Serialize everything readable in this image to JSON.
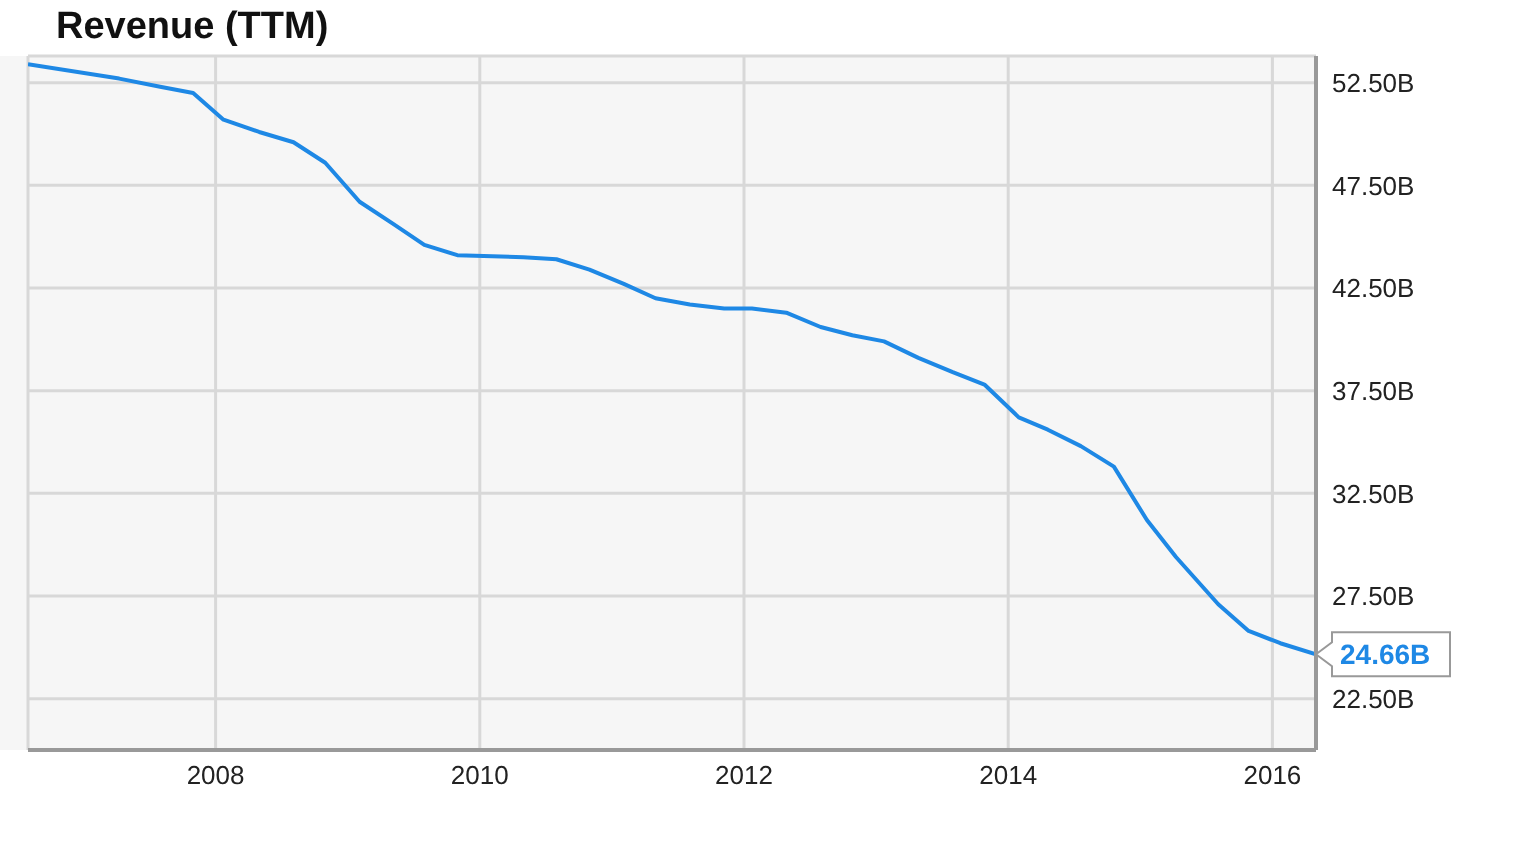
{
  "chart_data": {
    "type": "line",
    "title": "Revenue (TTM)",
    "x": [
      2006.58,
      2007.27,
      2007.58,
      2007.83,
      2008.06,
      2008.33,
      2008.59,
      2008.83,
      2009.09,
      2009.35,
      2009.58,
      2009.83,
      2010.33,
      2010.58,
      2010.83,
      2011.09,
      2011.33,
      2011.59,
      2011.85,
      2012.06,
      2012.32,
      2012.58,
      2012.82,
      2013.06,
      2013.32,
      2013.58,
      2013.82,
      2014.08,
      2014.3,
      2014.55,
      2014.8,
      2015.05,
      2015.27,
      2015.59,
      2015.82,
      2016.06,
      2016.33
    ],
    "series": [
      {
        "color": "#1e88e5",
        "values": [
          53.4,
          52.7,
          52.3,
          52.0,
          50.7,
          50.1,
          49.6,
          48.6,
          46.7,
          45.6,
          44.6,
          44.1,
          44.0,
          43.9,
          43.4,
          42.7,
          42.0,
          41.7,
          41.5,
          41.5,
          41.3,
          40.6,
          40.2,
          39.9,
          39.1,
          38.4,
          37.8,
          36.2,
          35.6,
          34.8,
          33.8,
          31.2,
          29.4,
          27.1,
          25.8,
          25.2,
          24.66
        ],
        "value_labels": [
          null,
          null,
          null,
          null,
          null,
          null,
          null,
          null,
          null,
          null,
          null,
          null,
          null,
          null,
          null,
          null,
          null,
          null,
          null,
          null,
          null,
          null,
          null,
          null,
          null,
          null,
          null,
          null,
          null,
          null,
          null,
          null,
          null,
          null,
          null,
          null,
          "24.66B"
        ]
      }
    ],
    "xlim": [
      2006.58,
      2016.33
    ],
    "xticks": [
      2008,
      2010,
      2012,
      2014,
      2016
    ],
    "ylim": [
      20,
      53.8
    ],
    "yticks": [
      {
        "value": 22.5,
        "label": "22.50B"
      },
      {
        "value": 27.5,
        "label": "27.50B"
      },
      {
        "value": 32.5,
        "label": "32.50B"
      },
      {
        "value": 37.5,
        "label": "37.50B"
      },
      {
        "value": 42.5,
        "label": "42.50B"
      },
      {
        "value": 47.5,
        "label": "47.50B"
      },
      {
        "value": 52.5,
        "label": "52.50B"
      }
    ],
    "grid": true,
    "marker": "none",
    "line_style": "solid"
  }
}
